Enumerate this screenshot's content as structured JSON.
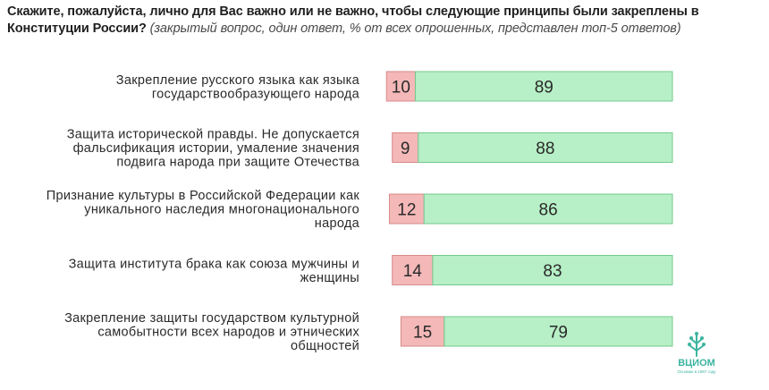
{
  "title": {
    "question": "Скажите, пожалуйста, лично для Вас важно или не важно, чтобы следующие принципы были закреплены в Конституции России?",
    "note": "(закрытый вопрос, один ответ, % от всех опрошенных, представлен топ-5 ответов)"
  },
  "colors": {
    "not_important_fill": "#f4b8b8",
    "not_important_stroke": "#d88a8a",
    "important_fill": "#b7efc6",
    "important_stroke": "#74c98e",
    "logo": "#3cb4a0"
  },
  "chart_data": {
    "type": "bar",
    "orientation": "horizontal",
    "stacked": true,
    "categories": [
      [
        "Закрепление русского языка как языка",
        "государствообразующего народа"
      ],
      [
        "Защита исторической правды. Не допускается",
        "фальсификация истории, умаление значения",
        "подвига народа при защите Отечества"
      ],
      [
        "Признание культуры в Российской Федерации как",
        "уникального наследия многонационального",
        "народа"
      ],
      [
        "Защита института брака как союза мужчины и",
        "женщины"
      ],
      [
        "Закрепление защиты государством культурной",
        "самобытности всех народов и этнических",
        "общностей"
      ]
    ],
    "series": [
      {
        "values": [
          10,
          9,
          12,
          14,
          15
        ]
      },
      {
        "values": [
          89,
          88,
          86,
          83,
          79
        ]
      }
    ]
  },
  "logo": {
    "text": "ВЦИОМ",
    "tagline": "Основан в 1987 году"
  }
}
